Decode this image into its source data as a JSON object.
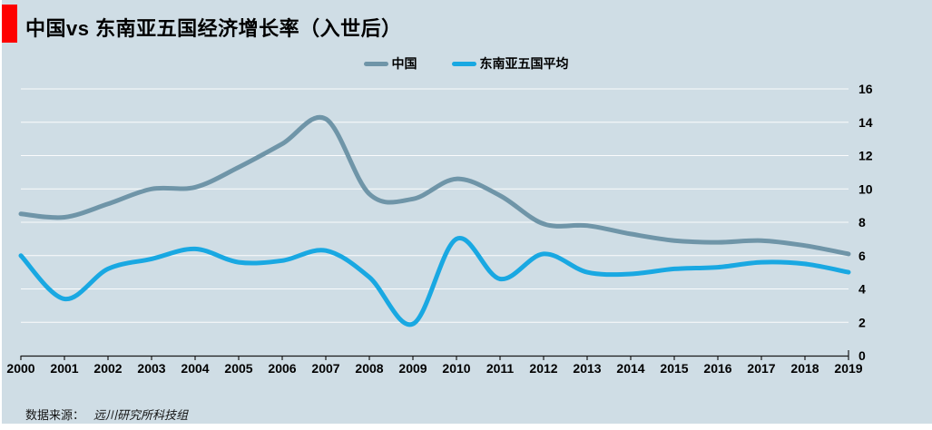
{
  "header": {
    "title": "中国vs 东南亚五国经济增长率（入世后）",
    "accent_color": "#fe0000"
  },
  "legend": {
    "items": [
      {
        "label": "中国",
        "color": "#6f95a8"
      },
      {
        "label": "东南亚五国平均",
        "color": "#19a8e2"
      }
    ]
  },
  "footer": {
    "source_label": "数据来源：",
    "source_value": "远川研究所科技组"
  },
  "chart_data": {
    "type": "line",
    "title": "中国vs 东南亚五国经济增长率（入世后）",
    "smoothed": true,
    "x": [
      2000,
      2001,
      2002,
      2003,
      2004,
      2005,
      2006,
      2007,
      2008,
      2009,
      2010,
      2011,
      2012,
      2013,
      2014,
      2015,
      2016,
      2017,
      2018,
      2019
    ],
    "series": [
      {
        "name": "中国",
        "color": "#6f95a8",
        "values": [
          8.5,
          8.3,
          9.1,
          10.0,
          10.1,
          11.3,
          12.7,
          14.2,
          9.7,
          9.4,
          10.6,
          9.6,
          7.9,
          7.8,
          7.3,
          6.9,
          6.8,
          6.9,
          6.6,
          6.1
        ]
      },
      {
        "name": "东南亚五国平均",
        "color": "#19a8e2",
        "values": [
          6.0,
          3.4,
          5.2,
          5.8,
          6.4,
          5.6,
          5.7,
          6.3,
          4.7,
          1.9,
          7.0,
          4.6,
          6.1,
          5.0,
          4.9,
          5.2,
          5.3,
          5.6,
          5.5,
          5.0
        ]
      }
    ],
    "ylim": [
      0,
      16
    ],
    "yticks": [
      0,
      2,
      4,
      6,
      8,
      10,
      12,
      14,
      16
    ],
    "grid": true,
    "legend_position": "top",
    "colors": {
      "background": "#cfdde5",
      "gridline": "#ffffff",
      "axis": "#1a1a1a",
      "tick_label": "#000000"
    }
  }
}
